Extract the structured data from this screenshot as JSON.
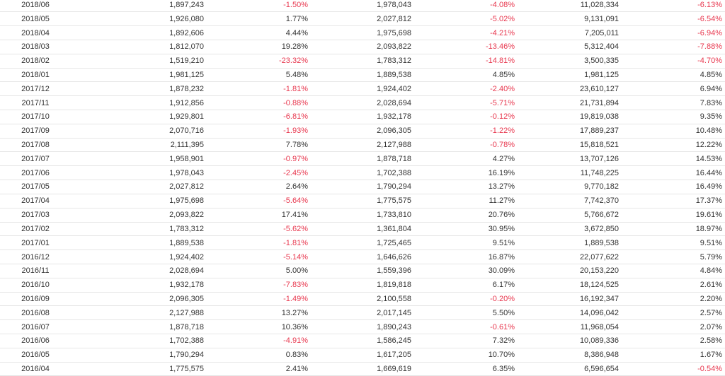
{
  "colors": {
    "negative": "#e8384f",
    "text": "#333333",
    "row_border": "#e6e6e6"
  },
  "table": {
    "rows": [
      [
        "2018/06",
        "1,897,243",
        "-1.50%",
        "1,978,043",
        "-4.08%",
        "11,028,334",
        "-6.13%"
      ],
      [
        "2018/05",
        "1,926,080",
        "1.77%",
        "2,027,812",
        "-5.02%",
        "9,131,091",
        "-6.54%"
      ],
      [
        "2018/04",
        "1,892,606",
        "4.44%",
        "1,975,698",
        "-4.21%",
        "7,205,011",
        "-6.94%"
      ],
      [
        "2018/03",
        "1,812,070",
        "19.28%",
        "2,093,822",
        "-13.46%",
        "5,312,404",
        "-7.88%"
      ],
      [
        "2018/02",
        "1,519,210",
        "-23.32%",
        "1,783,312",
        "-14.81%",
        "3,500,335",
        "-4.70%"
      ],
      [
        "2018/01",
        "1,981,125",
        "5.48%",
        "1,889,538",
        "4.85%",
        "1,981,125",
        "4.85%"
      ],
      [
        "2017/12",
        "1,878,232",
        "-1.81%",
        "1,924,402",
        "-2.40%",
        "23,610,127",
        "6.94%"
      ],
      [
        "2017/11",
        "1,912,856",
        "-0.88%",
        "2,028,694",
        "-5.71%",
        "21,731,894",
        "7.83%"
      ],
      [
        "2017/10",
        "1,929,801",
        "-6.81%",
        "1,932,178",
        "-0.12%",
        "19,819,038",
        "9.35%"
      ],
      [
        "2017/09",
        "2,070,716",
        "-1.93%",
        "2,096,305",
        "-1.22%",
        "17,889,237",
        "10.48%"
      ],
      [
        "2017/08",
        "2,111,395",
        "7.78%",
        "2,127,988",
        "-0.78%",
        "15,818,521",
        "12.22%"
      ],
      [
        "2017/07",
        "1,958,901",
        "-0.97%",
        "1,878,718",
        "4.27%",
        "13,707,126",
        "14.53%"
      ],
      [
        "2017/06",
        "1,978,043",
        "-2.45%",
        "1,702,388",
        "16.19%",
        "11,748,225",
        "16.44%"
      ],
      [
        "2017/05",
        "2,027,812",
        "2.64%",
        "1,790,294",
        "13.27%",
        "9,770,182",
        "16.49%"
      ],
      [
        "2017/04",
        "1,975,698",
        "-5.64%",
        "1,775,575",
        "11.27%",
        "7,742,370",
        "17.37%"
      ],
      [
        "2017/03",
        "2,093,822",
        "17.41%",
        "1,733,810",
        "20.76%",
        "5,766,672",
        "19.61%"
      ],
      [
        "2017/02",
        "1,783,312",
        "-5.62%",
        "1,361,804",
        "30.95%",
        "3,672,850",
        "18.97%"
      ],
      [
        "2017/01",
        "1,889,538",
        "-1.81%",
        "1,725,465",
        "9.51%",
        "1,889,538",
        "9.51%"
      ],
      [
        "2016/12",
        "1,924,402",
        "-5.14%",
        "1,646,626",
        "16.87%",
        "22,077,622",
        "5.79%"
      ],
      [
        "2016/11",
        "2,028,694",
        "5.00%",
        "1,559,396",
        "30.09%",
        "20,153,220",
        "4.84%"
      ],
      [
        "2016/10",
        "1,932,178",
        "-7.83%",
        "1,819,818",
        "6.17%",
        "18,124,525",
        "2.61%"
      ],
      [
        "2016/09",
        "2,096,305",
        "-1.49%",
        "2,100,558",
        "-0.20%",
        "16,192,347",
        "2.20%"
      ],
      [
        "2016/08",
        "2,127,988",
        "13.27%",
        "2,017,145",
        "5.50%",
        "14,096,042",
        "2.57%"
      ],
      [
        "2016/07",
        "1,878,718",
        "10.36%",
        "1,890,243",
        "-0.61%",
        "11,968,054",
        "2.07%"
      ],
      [
        "2016/06",
        "1,702,388",
        "-4.91%",
        "1,586,245",
        "7.32%",
        "10,089,336",
        "2.58%"
      ],
      [
        "2016/05",
        "1,790,294",
        "0.83%",
        "1,617,205",
        "10.70%",
        "8,386,948",
        "1.67%"
      ],
      [
        "2016/04",
        "1,775,575",
        "2.41%",
        "1,669,619",
        "6.35%",
        "6,596,654",
        "-0.54%"
      ]
    ]
  }
}
